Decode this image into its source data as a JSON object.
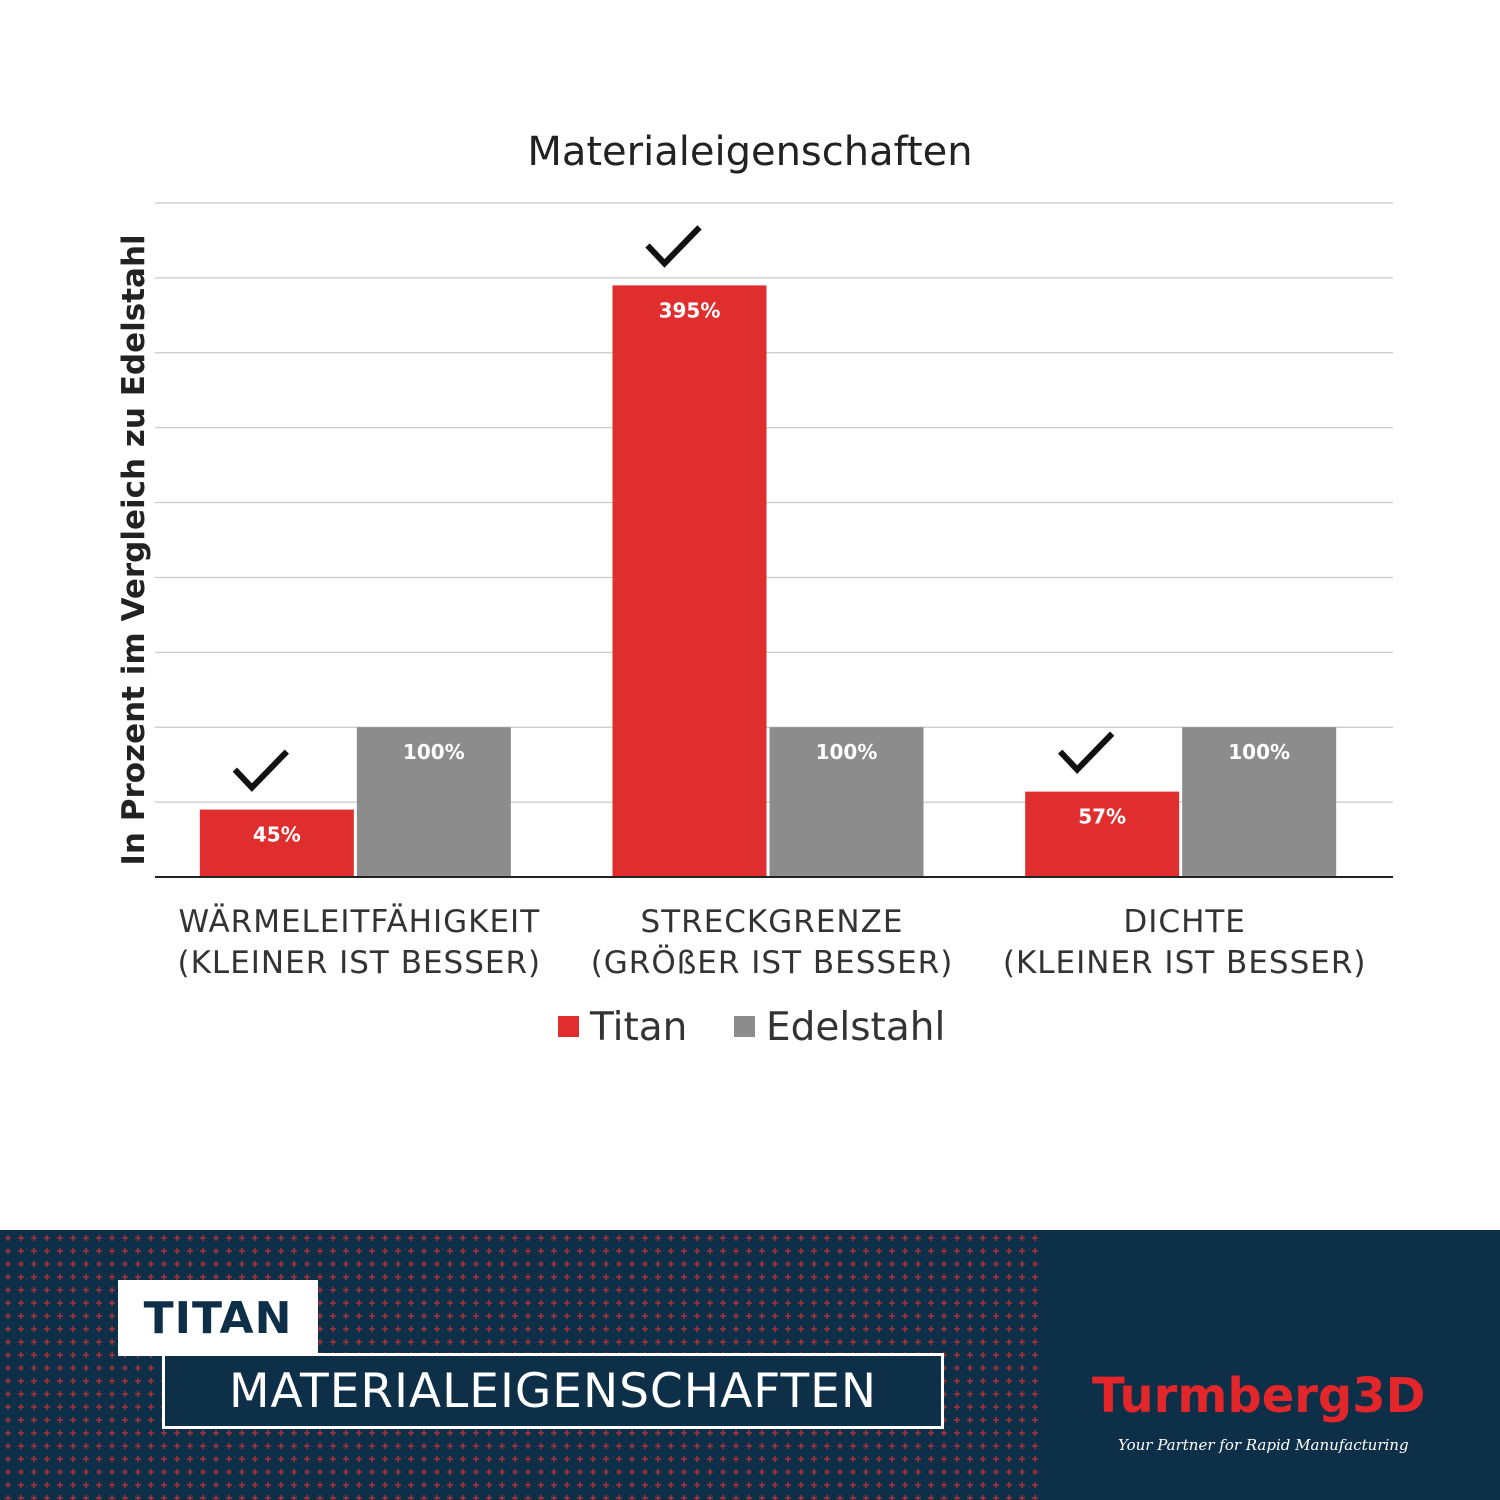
{
  "chart_data": {
    "type": "bar",
    "title": "Materialeigenschaften",
    "ylabel": "In Prozent im Vergleich zu Edelstahl",
    "xlabel": "",
    "categories": [
      [
        "WÄRMELEITFÄHIGKEIT",
        "(KLEINER IST BESSER)"
      ],
      [
        "STRECKGRENZE",
        "(GRÖßER IST BESSER)"
      ],
      [
        "DICHTE",
        "(KLEINER IST BESSER)"
      ]
    ],
    "series": [
      {
        "name": "Titan",
        "values": [
          45,
          395,
          57
        ],
        "labels": [
          "45%",
          "395%",
          "57%"
        ],
        "color": "#e02e2e"
      },
      {
        "name": "Edelstahl",
        "values": [
          100,
          100,
          100
        ],
        "labels": [
          "100%",
          "100%",
          "100%"
        ],
        "color": "#8c8c8c"
      }
    ],
    "ylim": [
      0,
      450
    ],
    "grid": true,
    "legend": "bottom",
    "annotations": [
      {
        "type": "checkmark-icon",
        "series": "Titan",
        "category_index": 0
      },
      {
        "type": "checkmark-icon",
        "series": "Titan",
        "category_index": 1
      },
      {
        "type": "checkmark-icon",
        "series": "Titan",
        "category_index": 2
      }
    ]
  },
  "banner": {
    "title_top": "TITAN",
    "title_bottom": "MATERIALEIGENSCHAFTEN",
    "logo": "Turmberg3D",
    "tagline": "Your Partner for Rapid Manufacturing"
  }
}
